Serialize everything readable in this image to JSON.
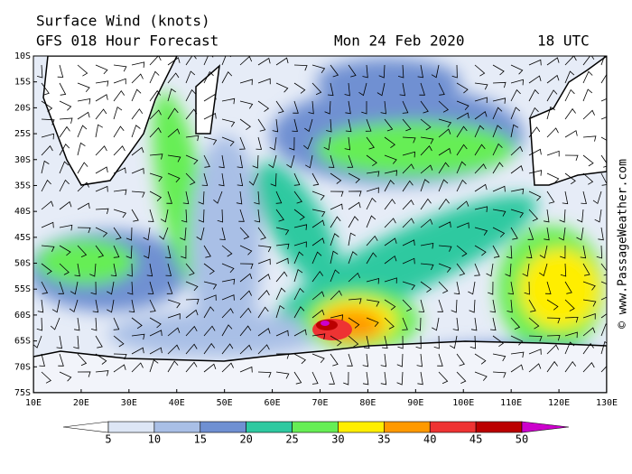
{
  "header": {
    "title": "Surface Wind (knots)",
    "subtitle": "GFS 018 Hour Forecast",
    "date": "Mon 24 Feb 2020",
    "time": "18 UTC"
  },
  "map": {
    "lat_labels": [
      "10S",
      "15S",
      "20S",
      "25S",
      "30S",
      "35S",
      "40S",
      "45S",
      "50S",
      "55S",
      "60S",
      "65S",
      "70S",
      "75S"
    ],
    "lon_labels": [
      "10E",
      "20E",
      "30E",
      "40E",
      "50E",
      "60E",
      "70E",
      "80E",
      "90E",
      "100E",
      "110E",
      "120E",
      "130E"
    ],
    "credit": "© www.PassageWeather.com"
  },
  "colorbar": {
    "labels": [
      5,
      10,
      15,
      20,
      25,
      30,
      35,
      40,
      45,
      50
    ],
    "colors": [
      "#ffffff",
      "#dde6f5",
      "#a9bfe6",
      "#6f90d2",
      "#2ec9a0",
      "#66ee55",
      "#ffee00",
      "#ff9900",
      "#ee3333",
      "#bb0000",
      "#cc00cc"
    ]
  }
}
